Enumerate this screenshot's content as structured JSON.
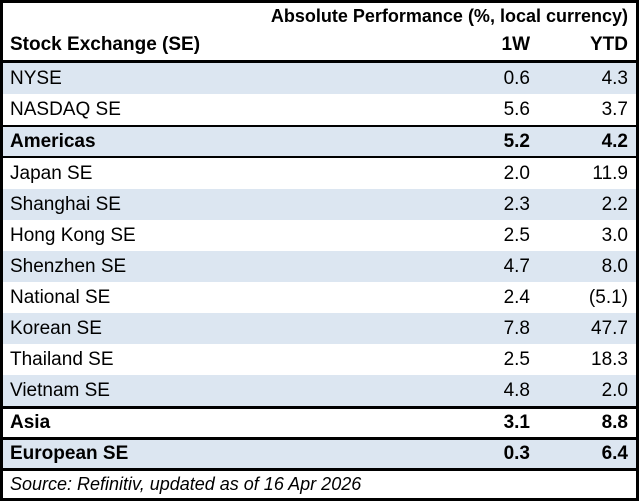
{
  "title": "Absolute Performance (%, local currency)",
  "table": {
    "header": {
      "label": "Stock Exchange (SE)",
      "col_1w": "1W",
      "col_ytd": "YTD"
    },
    "rows": [
      {
        "label": "NYSE",
        "w1": "0.6",
        "ytd": "4.3"
      },
      {
        "label": "NASDAQ SE",
        "w1": "5.6",
        "ytd": "3.7"
      },
      {
        "label": "Americas",
        "w1": "5.2",
        "ytd": "4.2"
      },
      {
        "label": "Japan SE",
        "w1": "2.0",
        "ytd": "11.9"
      },
      {
        "label": "Shanghai SE",
        "w1": "2.3",
        "ytd": "2.2"
      },
      {
        "label": "Hong Kong SE",
        "w1": "2.5",
        "ytd": "3.0"
      },
      {
        "label": "Shenzhen SE",
        "w1": "4.7",
        "ytd": "8.0"
      },
      {
        "label": "National SE",
        "w1": "2.4",
        "ytd": "(5.1)"
      },
      {
        "label": "Korean SE",
        "w1": "7.8",
        "ytd": "47.7"
      },
      {
        "label": "Thailand SE",
        "w1": "2.5",
        "ytd": "18.3"
      },
      {
        "label": "Vietnam SE",
        "w1": "4.8",
        "ytd": "2.0"
      },
      {
        "label": "Asia",
        "w1": "3.1",
        "ytd": "8.8"
      },
      {
        "label": "European SE",
        "w1": "0.3",
        "ytd": "6.4"
      }
    ]
  },
  "source": "Source: Refinitiv, updated as of 16 Apr 2026",
  "colors": {
    "band": "#DCE6F1",
    "border": "#000000",
    "text": "#000000",
    "background": "#FFFFFF"
  },
  "chart_data": {
    "type": "table",
    "title": "Absolute Performance (%, local currency)",
    "columns": [
      "Stock Exchange (SE)",
      "1W",
      "YTD"
    ],
    "rows": [
      [
        "NYSE",
        0.6,
        4.3
      ],
      [
        "NASDAQ SE",
        5.6,
        3.7
      ],
      [
        "Americas",
        5.2,
        4.2
      ],
      [
        "Japan SE",
        2.0,
        11.9
      ],
      [
        "Shanghai SE",
        2.3,
        2.2
      ],
      [
        "Hong Kong SE",
        2.5,
        3.0
      ],
      [
        "Shenzhen SE",
        4.7,
        8.0
      ],
      [
        "National SE",
        2.4,
        -5.1
      ],
      [
        "Korean SE",
        7.8,
        47.7
      ],
      [
        "Thailand SE",
        2.5,
        18.3
      ],
      [
        "Vietnam SE",
        4.8,
        2.0
      ],
      [
        "Asia",
        3.1,
        8.8
      ],
      [
        "European SE",
        0.3,
        6.4
      ]
    ],
    "summary_rows": [
      "Americas",
      "Asia",
      "European SE"
    ],
    "notes": "Negative values shown in parentheses, e.g. (5.1). Alternating light-blue row banding; bold black-bordered rows are regional aggregates.",
    "source": "Source: Refinitiv, updated as of 16 Apr 2026"
  }
}
